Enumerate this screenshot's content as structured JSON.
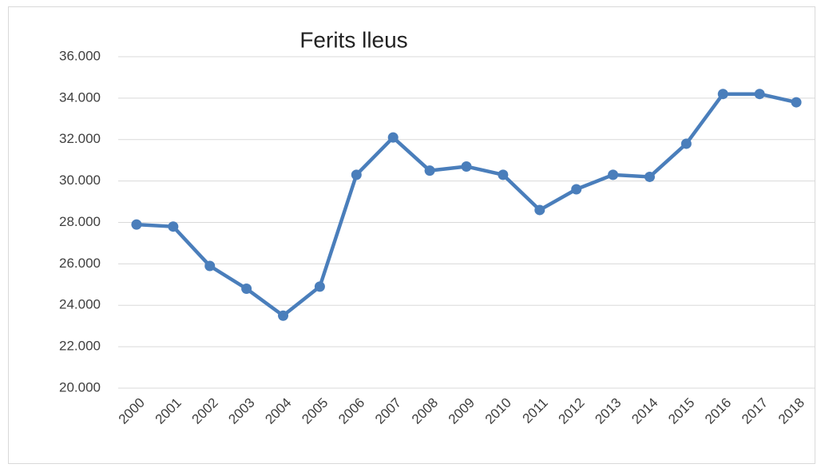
{
  "chart_data": {
    "type": "line",
    "title": "Ferits lleus",
    "categories": [
      "2000",
      "2001",
      "2002",
      "2003",
      "2004",
      "2005",
      "2006",
      "2007",
      "2008",
      "2009",
      "2010",
      "2011",
      "2012",
      "2013",
      "2014",
      "2015",
      "2016",
      "2017",
      "2018"
    ],
    "series": [
      {
        "name": "Ferits lleus",
        "color": "#4a7ebb",
        "values": [
          27900,
          27800,
          25900,
          24800,
          23500,
          24900,
          30300,
          32100,
          30500,
          30700,
          30300,
          28600,
          29600,
          30300,
          30200,
          31800,
          34200,
          34200,
          33800
        ]
      }
    ],
    "ylim": [
      20000,
      36000
    ],
    "yticks": [
      {
        "value": 20000,
        "label": "20.000"
      },
      {
        "value": 22000,
        "label": "22.000"
      },
      {
        "value": 24000,
        "label": "24.000"
      },
      {
        "value": 26000,
        "label": "26.000"
      },
      {
        "value": 28000,
        "label": "28.000"
      },
      {
        "value": 30000,
        "label": "30.000"
      },
      {
        "value": 32000,
        "label": "32.000"
      },
      {
        "value": 34000,
        "label": "34.000"
      },
      {
        "value": 36000,
        "label": "36.000"
      }
    ],
    "grid": true
  }
}
